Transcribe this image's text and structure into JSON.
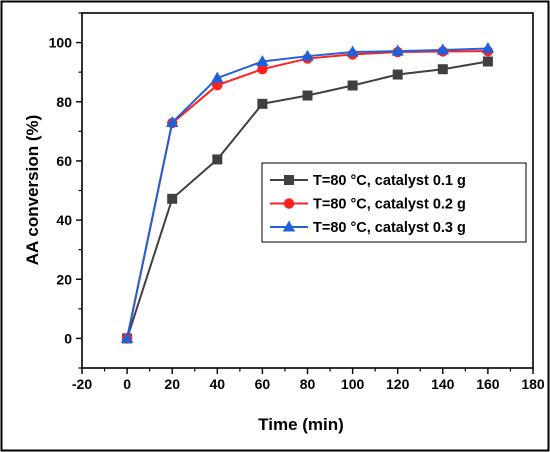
{
  "chart_data": {
    "type": "line",
    "title": "",
    "xlabel": "Time (min)",
    "ylabel": "AA conversion (%)",
    "xlim": [
      -20,
      180
    ],
    "ylim": [
      -10,
      110
    ],
    "xticks": [
      "-20",
      "0",
      "20",
      "40",
      "60",
      "80",
      "100",
      "120",
      "140",
      "160",
      "180"
    ],
    "yticks": [
      "0",
      "20",
      "40",
      "60",
      "80",
      "100"
    ],
    "x": [
      0,
      20,
      40,
      60,
      80,
      100,
      120,
      140,
      160
    ],
    "legend_position": "center-right",
    "grid": false,
    "series": [
      {
        "name": "T=80 °C, catalyst 0.1 g",
        "color": "#404040",
        "marker": "square",
        "values": [
          0,
          47.2,
          60.5,
          79.3,
          82.1,
          85.5,
          89.2,
          91,
          93.6
        ]
      },
      {
        "name": "T=80 °C, catalyst 0.2 g",
        "color": "#ff2020",
        "marker": "circle",
        "values": [
          0,
          72.8,
          85.6,
          91,
          94.6,
          96,
          96.8,
          97,
          97.1
        ]
      },
      {
        "name": "T=80 °C, catalyst 0.3 g",
        "color": "#2060d8",
        "marker": "triangle",
        "values": [
          0,
          73,
          88,
          93.6,
          95.4,
          96.8,
          97.1,
          97.5,
          98
        ]
      }
    ]
  }
}
